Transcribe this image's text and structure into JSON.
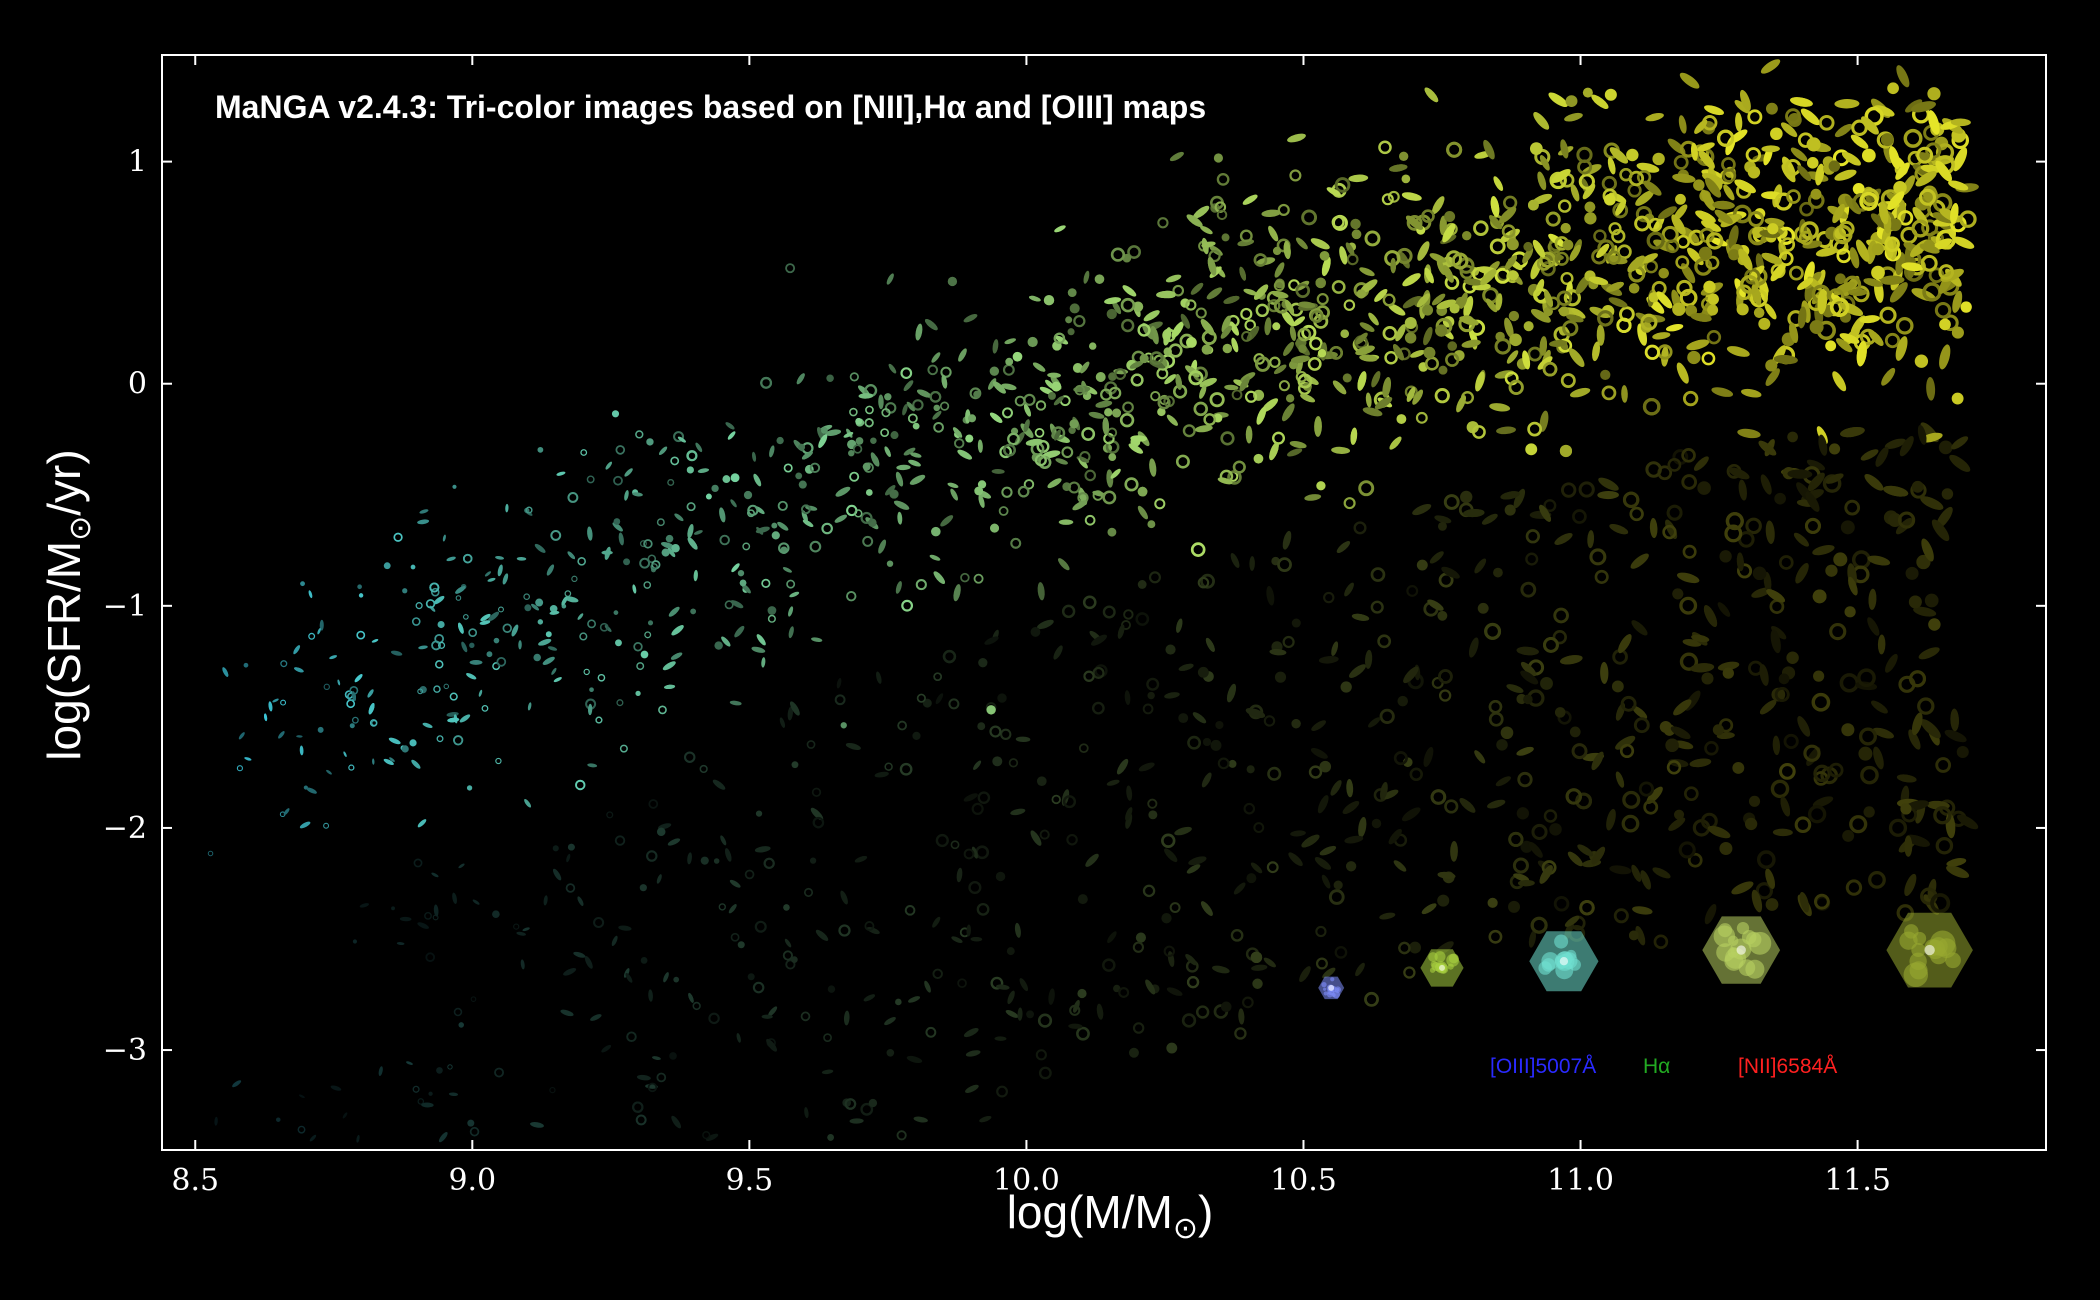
{
  "chart_data": {
    "type": "scatter",
    "title": "MaNGA v2.4.3: Tri-color images based on [NII],Hα and [OIII] maps",
    "xlabel_main": "log(M/M",
    "xlabel_sub": "⊙",
    "xlabel_end": ")",
    "ylabel_main": "log(SFR/M",
    "ylabel_sub": "⊙",
    "ylabel_end": "/yr)",
    "xlim": [
      8.44,
      11.84
    ],
    "ylim": [
      -3.45,
      1.48
    ],
    "xticks": [
      8.5,
      9.0,
      9.5,
      10.0,
      10.5,
      11.0,
      11.5
    ],
    "xtick_labels": [
      "8.5",
      "9.0",
      "9.5",
      "10.0",
      "10.5",
      "11.0",
      "11.5"
    ],
    "yticks": [
      1,
      0,
      -1,
      -2,
      -3
    ],
    "ytick_labels": [
      "1",
      "0",
      "−1",
      "−2",
      "−3"
    ],
    "grid": false,
    "legend": [
      {
        "label": "[OIII]5007Å",
        "color": "#2a2aff"
      },
      {
        "label": "Hα",
        "color": "#22aa22"
      },
      {
        "label": "[NII]6584Å",
        "color": "#ff2020"
      }
    ],
    "star_forming_sequence": {
      "x": [
        8.5,
        8.8,
        9.0,
        9.2,
        9.4,
        9.6,
        9.8,
        10.0,
        10.2,
        10.4,
        10.6,
        10.8,
        11.0,
        11.2,
        11.4
      ],
      "y": [
        -1.65,
        -1.35,
        -1.15,
        -0.95,
        -0.72,
        -0.5,
        -0.33,
        -0.18,
        0.0,
        0.18,
        0.3,
        0.45,
        0.55,
        0.6,
        0.7
      ]
    },
    "series": [
      {
        "name": "[OIII]5007Å",
        "color": "#2a2aff"
      },
      {
        "name": "Hα",
        "color": "#22aa22"
      },
      {
        "name": "[NII]6584Å",
        "color": "#ff2020"
      }
    ],
    "example_galaxies": [
      {
        "x": 10.55,
        "y": -2.72,
        "size": 0.03,
        "color": "#8090ff"
      },
      {
        "x": 10.75,
        "y": -2.63,
        "size": 0.05,
        "color": "#a8d040"
      },
      {
        "x": 10.97,
        "y": -2.6,
        "size": 0.08,
        "color": "#70e0d0"
      },
      {
        "x": 11.29,
        "y": -2.55,
        "size": 0.09,
        "color": "#b8d060"
      },
      {
        "x": 11.63,
        "y": -2.55,
        "size": 0.1,
        "color": "#98a830"
      }
    ]
  }
}
